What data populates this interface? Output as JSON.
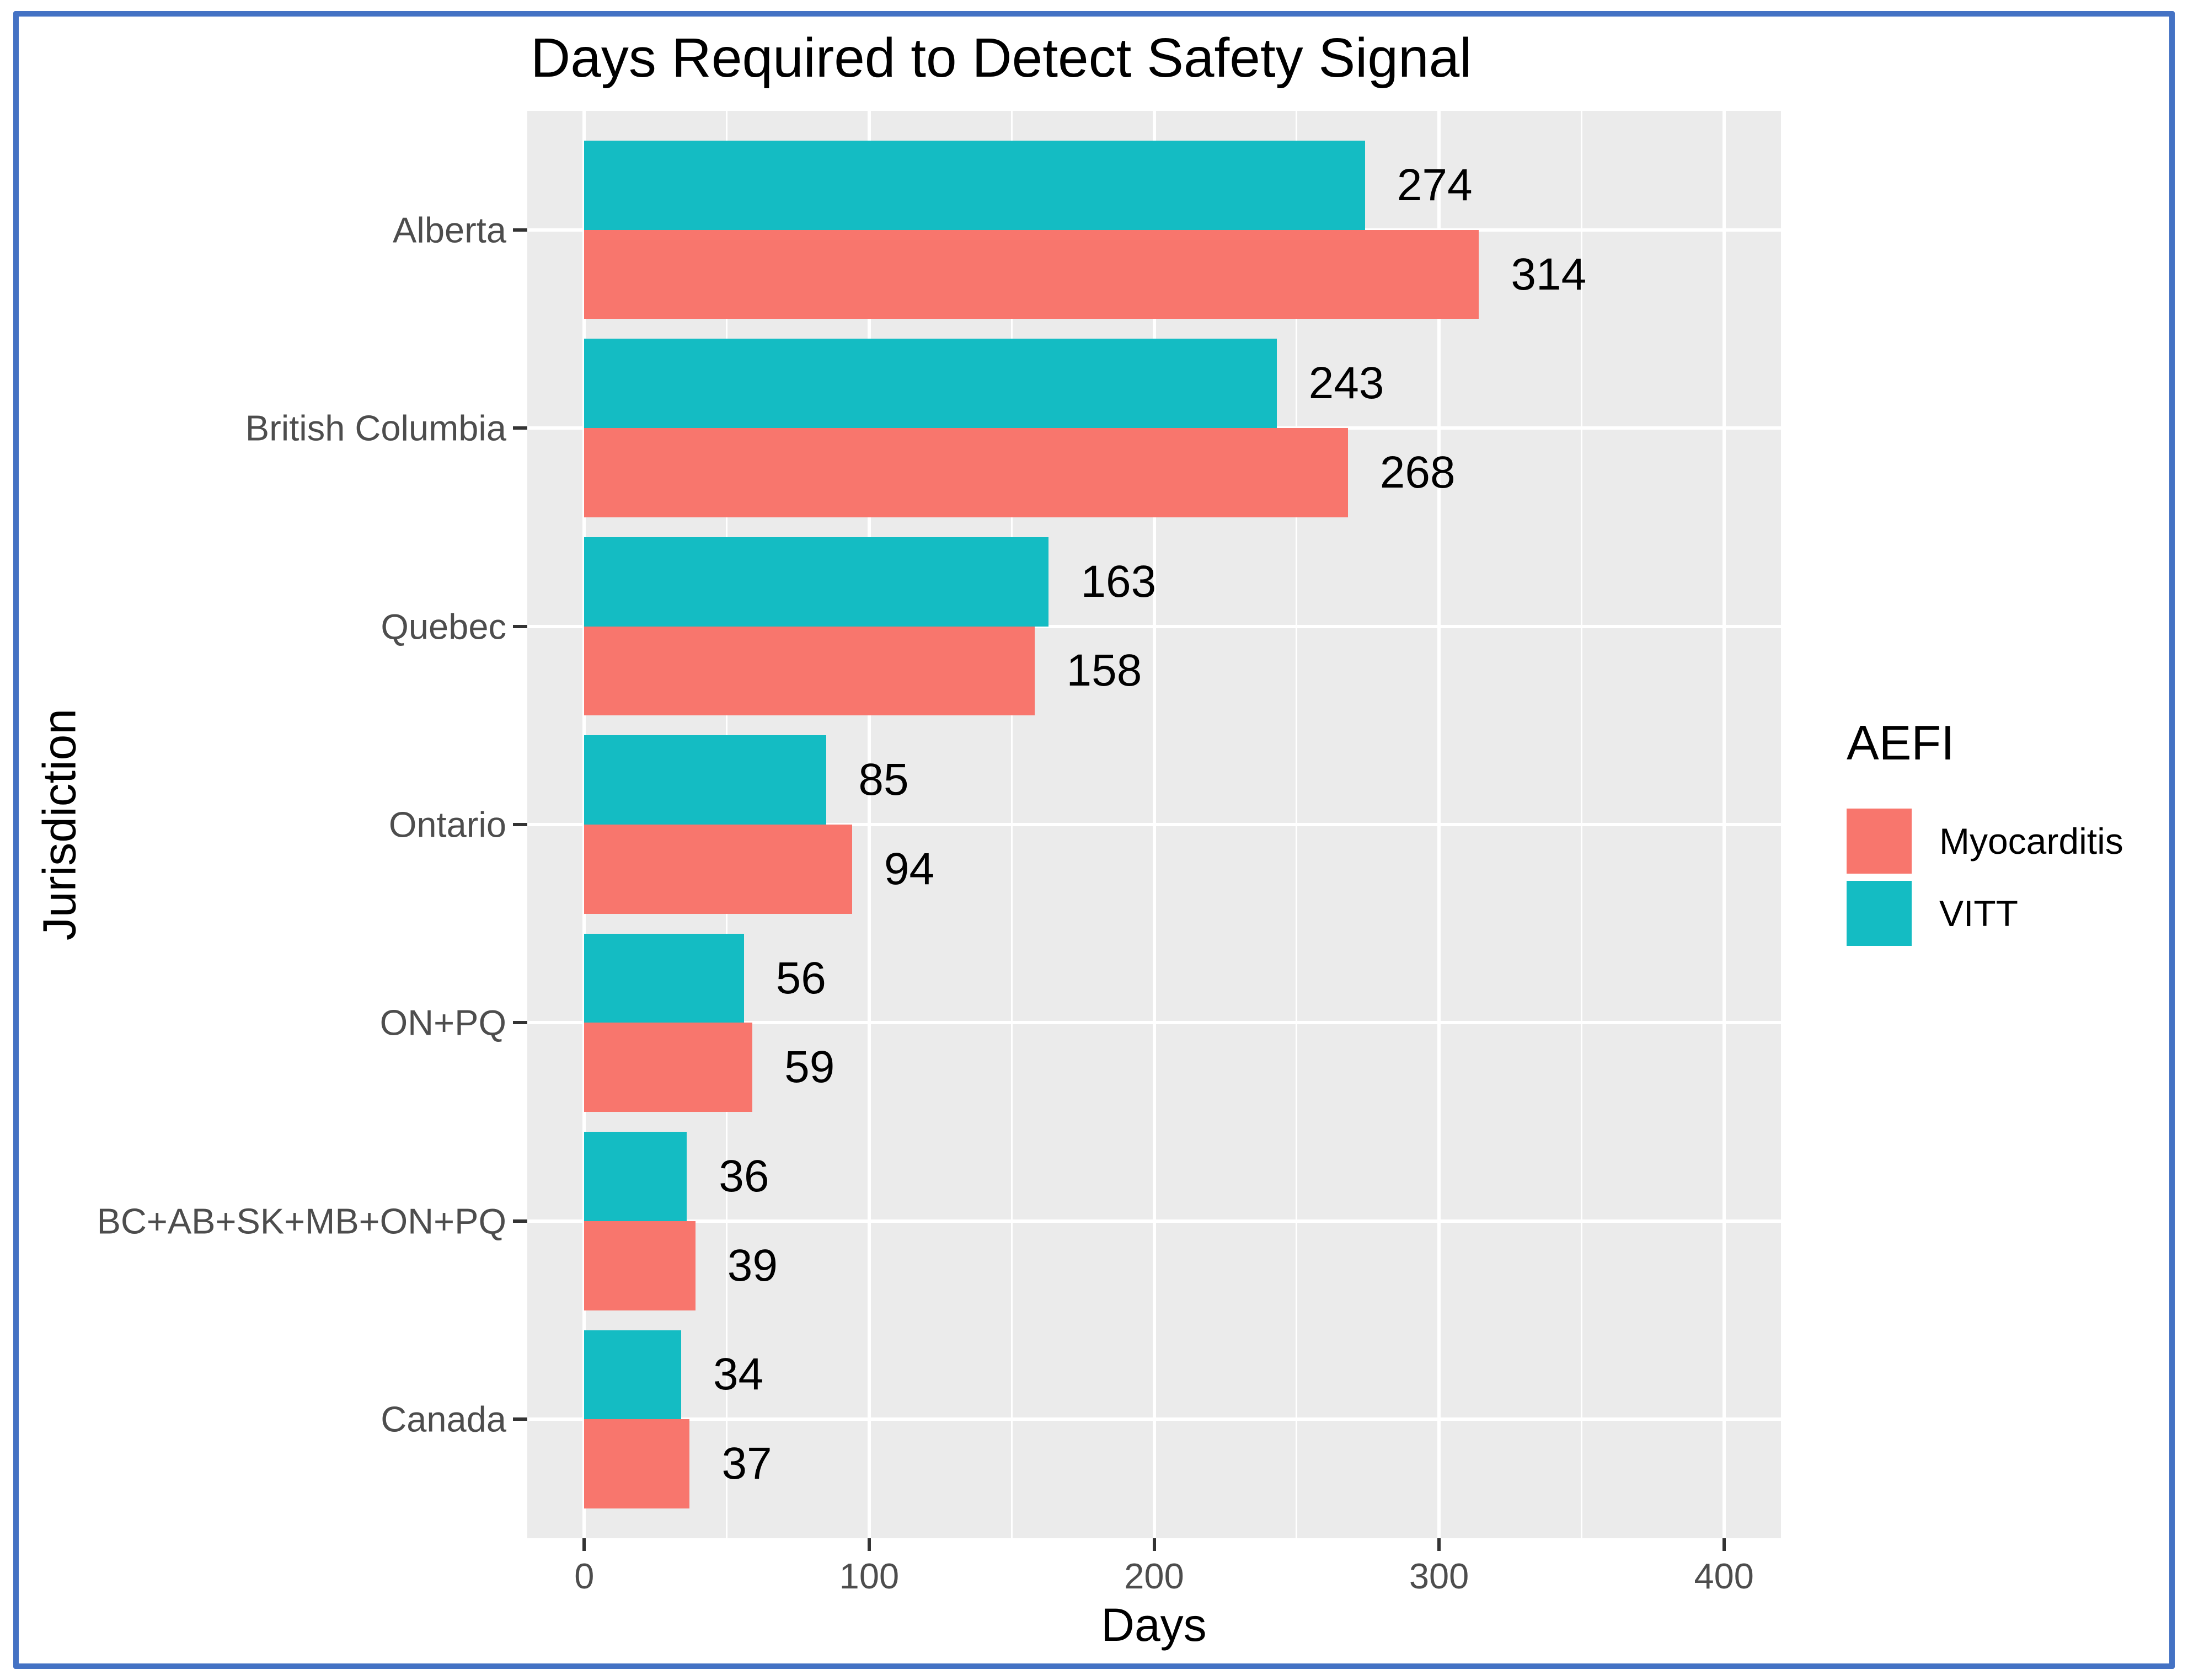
{
  "chart_data": {
    "type": "bar",
    "orientation": "horizontal",
    "title": "Days Required to Detect Safety Signal",
    "xlabel": "Days",
    "ylabel": "Jurisdiction",
    "categories": [
      "Alberta",
      "British Columbia",
      "Quebec",
      "Ontario",
      "ON+PQ",
      "BC+AB+SK+MB+ON+PQ",
      "Canada"
    ],
    "series": [
      {
        "name": "VITT",
        "color": "#14BCC3",
        "values": [
          274,
          243,
          163,
          85,
          56,
          36,
          34
        ]
      },
      {
        "name": "Myocarditis",
        "color": "#F8766D",
        "values": [
          314,
          268,
          158,
          94,
          59,
          39,
          37
        ]
      }
    ],
    "value_labels_shown": true,
    "x_ticks": [
      0,
      100,
      200,
      300,
      400
    ],
    "x_minor_gridlines": [
      50,
      150,
      250,
      350
    ],
    "xlim": [
      -20,
      420
    ],
    "legend": {
      "title": "AEFI",
      "items": [
        "Myocarditis",
        "VITT"
      ],
      "position": "right"
    },
    "style": {
      "panel_background": "#EBEBEB",
      "gridline_color": "#FFFFFF",
      "tick_label_color": "#4D4D4D",
      "text_color": "#000000",
      "frame_color": "#4472C4"
    }
  }
}
